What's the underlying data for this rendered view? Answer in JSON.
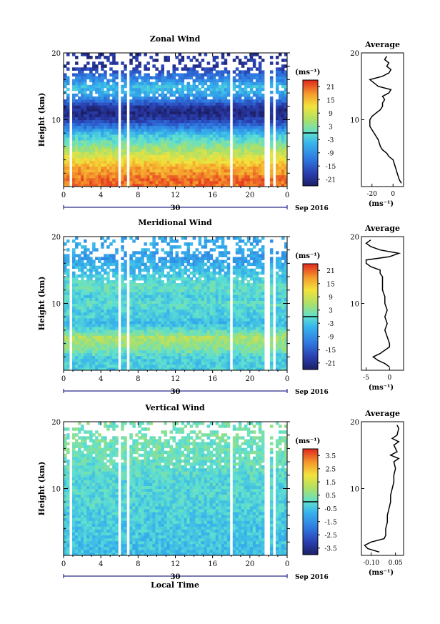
{
  "figure": {
    "month_label": "Sep 2016",
    "date_label": "30",
    "x_label": "Local Time",
    "y_label": "Height (km)",
    "unit_label": "(ms⁻¹)",
    "avg_title": "Average"
  },
  "chart_data": [
    {
      "type": "heatmap",
      "title": "Zonal Wind",
      "x_ticks": [
        "0",
        "4",
        "8",
        "12",
        "16",
        "20",
        "0"
      ],
      "y_ticks": [
        "10",
        "20"
      ],
      "ylim": [
        0,
        20
      ],
      "x_range_hours": [
        0,
        24
      ],
      "colorbar": {
        "ticks": [
          "21",
          "15",
          "9",
          "3",
          "-3",
          "-9",
          "-15",
          "-21"
        ],
        "range": [
          -24,
          24
        ]
      },
      "profile_by_height": [
        [
          1,
          20
        ],
        [
          2,
          18
        ],
        [
          3,
          16
        ],
        [
          4,
          12
        ],
        [
          5,
          8
        ],
        [
          6,
          4
        ],
        [
          7,
          0
        ],
        [
          8,
          -4
        ],
        [
          9,
          -12
        ],
        [
          10,
          -18
        ],
        [
          11,
          -22
        ],
        [
          12,
          -20
        ],
        [
          13,
          -12
        ],
        [
          14,
          -6
        ],
        [
          15,
          -4
        ],
        [
          16,
          -10
        ],
        [
          17,
          -14
        ],
        [
          18,
          -20
        ]
      ],
      "gaps_hours": [
        [
          0.7,
          1.0
        ],
        [
          5.9,
          6.2
        ],
        [
          6.8,
          7.1
        ],
        [
          17.9,
          18.3
        ],
        [
          21.6,
          22.0
        ],
        [
          22.6,
          22.9
        ]
      ],
      "average": {
        "xlim": [
          -30,
          10
        ],
        "x_ticks": [
          "-20",
          "0"
        ],
        "y_ticks": [
          "10",
          "20"
        ],
        "height_km": [
          0.5,
          1,
          2,
          3,
          4,
          4.5,
          5,
          5.5,
          6,
          7,
          8,
          9,
          10,
          10.5,
          11,
          11.5,
          12,
          12.5,
          13,
          13.5,
          14,
          14.5,
          15,
          15.5,
          16,
          16.5,
          17,
          17.5,
          18,
          18.5,
          19,
          19.5
        ],
        "value": [
          8,
          6,
          4,
          2,
          0,
          -4,
          -6,
          -10,
          -12,
          -14,
          -18,
          -22,
          -22,
          -20,
          -16,
          -12,
          -10,
          -10,
          -8,
          -10,
          -4,
          -2,
          -14,
          -18,
          -22,
          -10,
          -4,
          -2,
          -6,
          -4,
          -8,
          -6
        ]
      }
    },
    {
      "type": "heatmap",
      "title": "Meridional Wind",
      "x_ticks": [
        "0",
        "4",
        "8",
        "12",
        "16",
        "20",
        "0"
      ],
      "y_ticks": [
        "10",
        "20"
      ],
      "ylim": [
        0,
        20
      ],
      "x_range_hours": [
        0,
        24
      ],
      "colorbar": {
        "ticks": [
          "21",
          "15",
          "9",
          "3",
          "-3",
          "-9",
          "-15",
          "-21"
        ],
        "range": [
          -24,
          24
        ]
      },
      "profile_by_height": [
        [
          1,
          -2
        ],
        [
          2,
          -2
        ],
        [
          3,
          2
        ],
        [
          4,
          4
        ],
        [
          5,
          6
        ],
        [
          6,
          0
        ],
        [
          7,
          -4
        ],
        [
          8,
          -2
        ],
        [
          9,
          -2
        ],
        [
          10,
          0
        ],
        [
          11,
          -2
        ],
        [
          12,
          0
        ],
        [
          13,
          0
        ],
        [
          14,
          -2
        ],
        [
          15,
          -4
        ],
        [
          16,
          -6
        ],
        [
          17,
          -8
        ],
        [
          18,
          -6
        ]
      ],
      "gaps_hours": [
        [
          0.7,
          1.0
        ],
        [
          5.9,
          6.2
        ],
        [
          6.8,
          7.1
        ],
        [
          17.9,
          18.3
        ],
        [
          21.6,
          22.0
        ],
        [
          22.6,
          22.9
        ]
      ],
      "average": {
        "xlim": [
          -6,
          3
        ],
        "x_ticks": [
          "-5",
          "0"
        ],
        "y_ticks": [
          "10",
          "20"
        ],
        "height_km": [
          0.5,
          1,
          1.5,
          2,
          2.5,
          3,
          3.5,
          4,
          5,
          6,
          7,
          8,
          9,
          10,
          11,
          12,
          13,
          14,
          14.5,
          15,
          15.5,
          16,
          16.5,
          17,
          17.5,
          18,
          18.5,
          19,
          19.5
        ],
        "value": [
          0,
          -1,
          -2.5,
          -3.5,
          -2,
          -1,
          0,
          0,
          -0.5,
          -1,
          -0.5,
          -1,
          -0.5,
          -1,
          -1,
          -1.5,
          -1.5,
          -1.5,
          -2,
          -2,
          -4,
          -5,
          -5,
          0,
          2,
          -2,
          -4,
          -5,
          -4
        ]
      }
    },
    {
      "type": "heatmap",
      "title": "Vertical Wind",
      "x_ticks": [
        "0",
        "4",
        "8",
        "12",
        "16",
        "20",
        "0"
      ],
      "y_ticks": [
        "10",
        "20"
      ],
      "ylim": [
        0,
        20
      ],
      "x_range_hours": [
        0,
        24
      ],
      "colorbar": {
        "ticks": [
          "3.5",
          "2.5",
          "1.5",
          "0.5",
          "-0.5",
          "-1.5",
          "-2.5",
          "-3.5"
        ],
        "range": [
          -4,
          4
        ]
      },
      "profile_by_height": [
        [
          1,
          -0.6
        ],
        [
          3,
          -0.5
        ],
        [
          5,
          -0.4
        ],
        [
          7,
          -0.3
        ],
        [
          9,
          -0.2
        ],
        [
          11,
          -0.2
        ],
        [
          13,
          0.0
        ],
        [
          15,
          0.2
        ],
        [
          17,
          0.3
        ],
        [
          19,
          0.3
        ]
      ],
      "gaps_hours": [
        [
          0.7,
          1.0
        ],
        [
          5.9,
          6.2
        ],
        [
          6.8,
          7.1
        ],
        [
          17.9,
          18.3
        ],
        [
          21.6,
          22.0
        ],
        [
          22.6,
          22.9
        ]
      ],
      "average": {
        "xlim": [
          -0.16,
          0.1
        ],
        "x_ticks": [
          "-0.10",
          "0.05"
        ],
        "y_ticks": [
          "10",
          "20"
        ],
        "height_km": [
          0.5,
          1,
          1.5,
          2,
          2.5,
          3,
          4,
          5,
          6,
          7,
          8,
          9,
          10,
          11,
          12,
          13,
          14,
          14.5,
          15,
          15.5,
          16,
          16.5,
          17,
          17.5,
          18,
          19,
          19.5
        ],
        "value": [
          -0.05,
          -0.12,
          -0.14,
          -0.1,
          -0.02,
          -0.01,
          -0.01,
          0.0,
          0.0,
          0.01,
          0.02,
          0.02,
          0.03,
          0.04,
          0.04,
          0.05,
          0.04,
          0.07,
          0.02,
          0.06,
          0.05,
          0.04,
          0.07,
          0.03,
          0.06,
          0.07,
          0.06
        ]
      }
    }
  ]
}
